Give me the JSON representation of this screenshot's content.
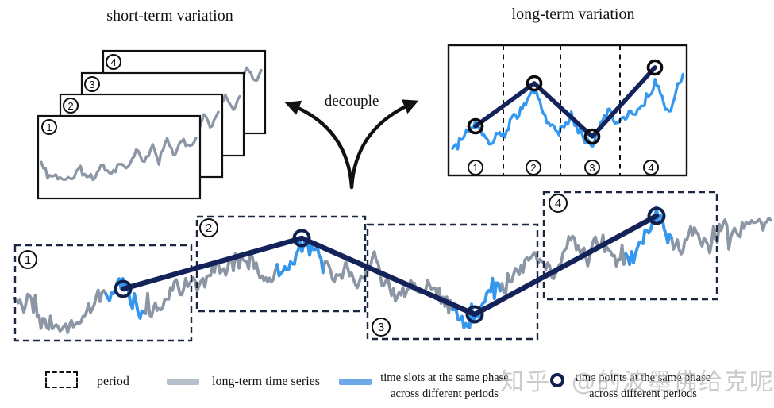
{
  "figure": {
    "title_short": "short-term variation",
    "title_long": "long-term variation",
    "decouple_label": "decouple"
  },
  "periods": {
    "p1": "1",
    "p2": "2",
    "p3": "3",
    "p4": "4"
  },
  "legend": {
    "period_label": "period",
    "long_term_label": "long-term time series",
    "time_slots_line1": "time slots at the same phase",
    "time_slots_line2": "across different periods",
    "time_points_line1": "time points at the same phase",
    "time_points_line2": "across different periods"
  },
  "watermark": {
    "brand": "知乎",
    "handle": "@的波墨佛给克呢"
  },
  "colors": {
    "series_gray": "#8c96a4",
    "series_blue": "#3498f0",
    "trend_navy": "#13235a",
    "marker_ring": "#10204d",
    "dash_box": "#1b2740",
    "legend_gray": "#b5bec9",
    "legend_blue": "#6fa8e8",
    "ink": "#111111"
  },
  "diagram_data": {
    "periods": [
      "1",
      "2",
      "3",
      "4"
    ],
    "long_term_trend_pattern": [
      "low",
      "high",
      "low",
      "high"
    ],
    "long_term_trend_levels": [
      0.38,
      0.72,
      0.28,
      0.85
    ],
    "panels_short_term": 4
  }
}
